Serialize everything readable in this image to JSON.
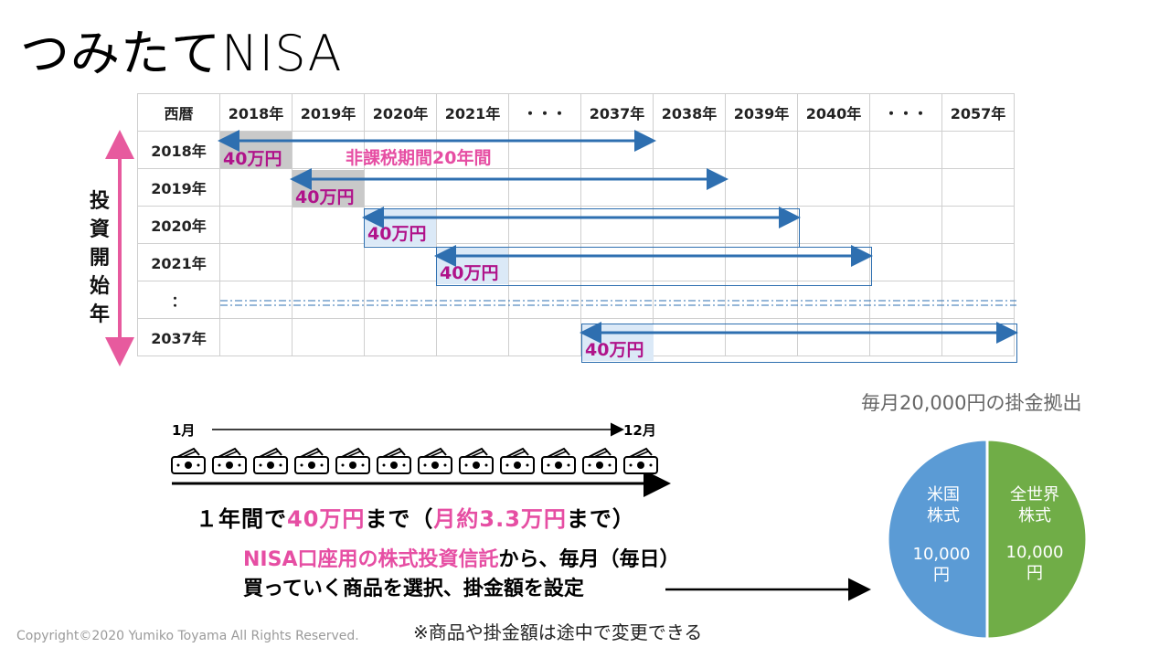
{
  "title": "つみたてNISA",
  "table": {
    "header": [
      "西暦",
      "2018年",
      "2019年",
      "2020年",
      "2021年",
      "・・・",
      "2037年",
      "2038年",
      "2039年",
      "2040年",
      "・・・",
      "2057年"
    ],
    "rows": [
      "2018年",
      "2019年",
      "2020年",
      "2021年",
      "：",
      "2037年"
    ]
  },
  "axis_label": [
    "投",
    "資",
    "開",
    "始",
    "年"
  ],
  "amount": "40万円",
  "period_label": "非課税期間20年間",
  "months": {
    "start": "1月",
    "end": "12月"
  },
  "annual_text": {
    "a": "１年間で",
    "b": "40万円",
    "c": "まで（",
    "d": "月約3.3万円",
    "e": "まで）"
  },
  "product_text": {
    "a": "NISA口座用の株式投資信託",
    "b": "から、毎月（毎日）",
    "c": "買っていく商品を選択、掛金額を設定"
  },
  "note": "※商品や掛金額は途中で変更できる",
  "copyright": "Copyright©2020 Yumiko Toyama All Rights Reserved.",
  "pie": {
    "title": "毎月20,000円の掛金拠出",
    "slices": [
      {
        "label1": "米国",
        "label2": "株式",
        "value": "10,000",
        "unit": "円",
        "color": "#5b9bd5"
      },
      {
        "label1": "全世界",
        "label2": "株式",
        "value": "10,000",
        "unit": "円",
        "color": "#70ad47"
      }
    ]
  }
}
